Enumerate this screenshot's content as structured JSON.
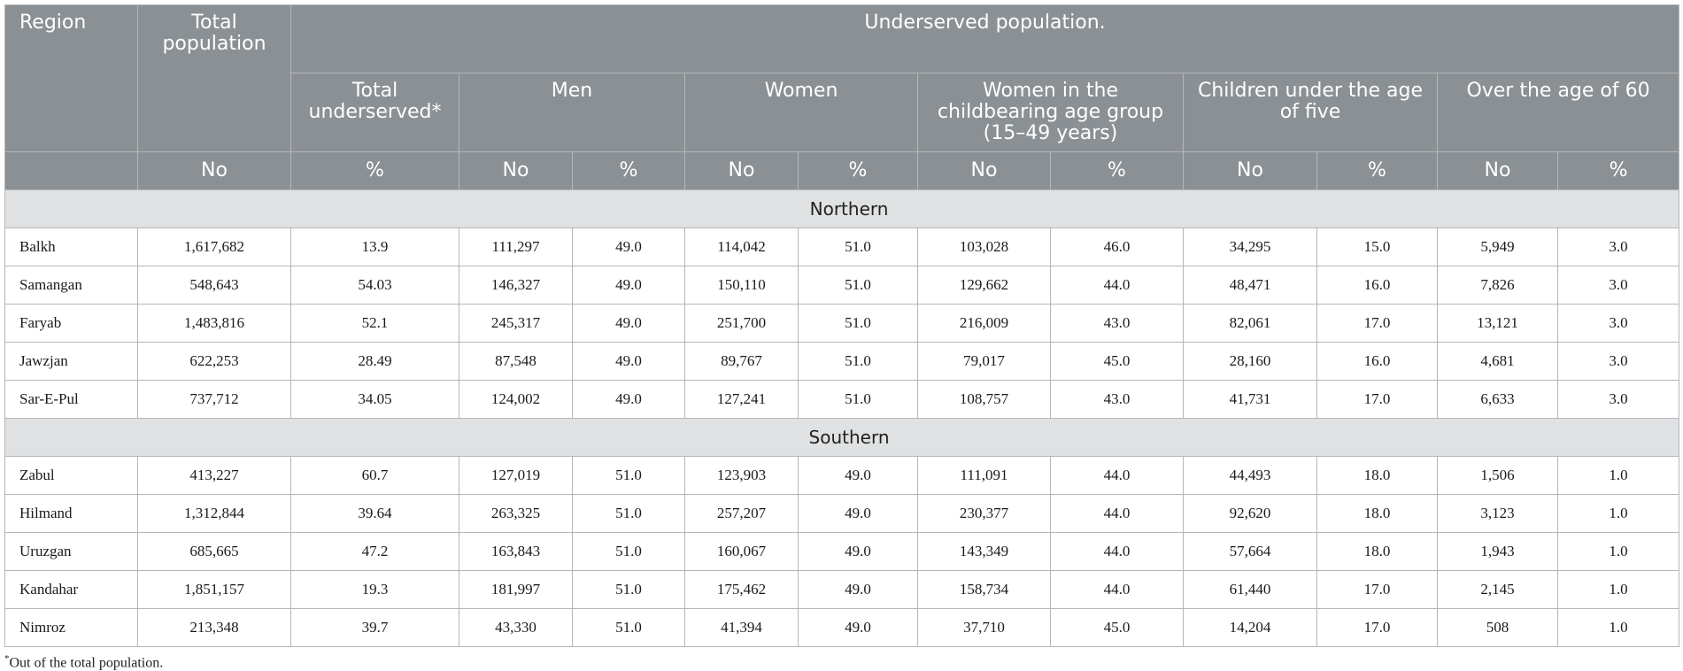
{
  "headers": {
    "region": "Region",
    "total_population": "Total population",
    "underserved_group": "Underserved population.",
    "total_underserved": "Total underserved*",
    "men": "Men",
    "women": "Women",
    "women_childbearing": "Women in the childbearing age group (15–49 years)",
    "children": "Children under the age of five",
    "over60": "Over the age of 60",
    "no": "No",
    "pct": "%"
  },
  "sections": [
    {
      "name": "Northern",
      "rows": [
        [
          "Balkh",
          "1,617,682",
          "13.9",
          "111,297",
          "49.0",
          "114,042",
          "51.0",
          "103,028",
          "46.0",
          "34,295",
          "15.0",
          "5,949",
          "3.0"
        ],
        [
          "Samangan",
          "548,643",
          "54.03",
          "146,327",
          "49.0",
          "150,110",
          "51.0",
          "129,662",
          "44.0",
          "48,471",
          "16.0",
          "7,826",
          "3.0"
        ],
        [
          "Faryab",
          "1,483,816",
          "52.1",
          "245,317",
          "49.0",
          "251,700",
          "51.0",
          "216,009",
          "43.0",
          "82,061",
          "17.0",
          "13,121",
          "3.0"
        ],
        [
          "Jawzjan",
          "622,253",
          "28.49",
          "87,548",
          "49.0",
          "89,767",
          "51.0",
          "79,017",
          "45.0",
          "28,160",
          "16.0",
          "4,681",
          "3.0"
        ],
        [
          "Sar-E-Pul",
          "737,712",
          "34.05",
          "124,002",
          "49.0",
          "127,241",
          "51.0",
          "108,757",
          "43.0",
          "41,731",
          "17.0",
          "6,633",
          "3.0"
        ]
      ]
    },
    {
      "name": "Southern",
      "rows": [
        [
          "Zabul",
          "413,227",
          "60.7",
          "127,019",
          "51.0",
          "123,903",
          "49.0",
          "111,091",
          "44.0",
          "44,493",
          "18.0",
          "1,506",
          "1.0"
        ],
        [
          "Hilmand",
          "1,312,844",
          "39.64",
          "263,325",
          "51.0",
          "257,207",
          "49.0",
          "230,377",
          "44.0",
          "92,620",
          "18.0",
          "3,123",
          "1.0"
        ],
        [
          "Uruzgan",
          "685,665",
          "47.2",
          "163,843",
          "51.0",
          "160,067",
          "49.0",
          "143,349",
          "44.0",
          "57,664",
          "18.0",
          "1,943",
          "1.0"
        ],
        [
          "Kandahar",
          "1,851,157",
          "19.3",
          "181,997",
          "51.0",
          "175,462",
          "49.0",
          "158,734",
          "44.0",
          "61,440",
          "17.0",
          "2,145",
          "1.0"
        ],
        [
          "Nimroz",
          "213,348",
          "39.7",
          "43,330",
          "51.0",
          "41,394",
          "49.0",
          "37,710",
          "45.0",
          "14,204",
          "17.0",
          "508",
          "1.0"
        ]
      ]
    }
  ],
  "footnote": {
    "marker": "*",
    "text": "Out of the total population."
  }
}
